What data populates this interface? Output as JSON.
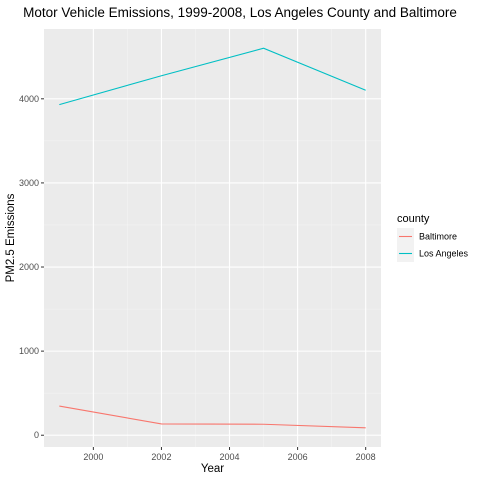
{
  "chart_data": {
    "type": "line",
    "title": "Motor Vehicle Emissions, 1999-2008, Los Angeles County and Baltimore",
    "xlabel": "Year",
    "ylabel": "PM2.5 Emissions",
    "x": [
      1999,
      2002,
      2005,
      2008
    ],
    "xlim": [
      1998.55,
      2008.45
    ],
    "ylim": [
      -140,
      4830
    ],
    "xticks": [
      2000,
      2002,
      2004,
      2006,
      2008
    ],
    "yticks": [
      0,
      1000,
      2000,
      3000,
      4000
    ],
    "grid": true,
    "legend": {
      "title": "county",
      "position": "right"
    },
    "series": [
      {
        "name": "Baltimore",
        "color": "#F8766D",
        "values": [
          346.8,
          134.3,
          130.4,
          88.3
        ]
      },
      {
        "name": "Los Angeles",
        "color": "#00BFC4",
        "values": [
          3931.1,
          4274.0,
          4601.4,
          4101.3
        ]
      }
    ]
  }
}
